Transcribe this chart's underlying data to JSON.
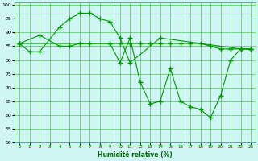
{
  "xlabel": "Humidité relative (%)",
  "background_color": "#cff5f5",
  "grid_color": "#33bb33",
  "line_color": "#009900",
  "marker": "+",
  "marker_size": 4,
  "line_width": 0.8,
  "xlim": [
    -0.5,
    23.5
  ],
  "ylim": [
    50,
    101
  ],
  "yticks": [
    50,
    55,
    60,
    65,
    70,
    75,
    80,
    85,
    90,
    95,
    100
  ],
  "xticks": [
    0,
    1,
    2,
    3,
    4,
    5,
    6,
    7,
    8,
    9,
    10,
    11,
    12,
    13,
    14,
    15,
    16,
    17,
    18,
    19,
    20,
    21,
    22,
    23
  ],
  "series1": {
    "x": [
      0,
      1,
      2,
      4,
      5,
      6,
      7,
      8,
      9,
      10,
      11,
      14,
      22,
      23
    ],
    "y": [
      86,
      83,
      83,
      92,
      95,
      97,
      97,
      95,
      94,
      88,
      79,
      88,
      84,
      84
    ]
  },
  "series2": {
    "x": [
      0,
      2,
      4,
      5,
      6,
      7,
      9,
      10,
      11,
      12,
      13,
      14,
      15,
      16,
      17,
      18,
      19,
      20,
      21,
      22,
      23
    ],
    "y": [
      86,
      89,
      85,
      85,
      86,
      86,
      86,
      86,
      86,
      86,
      86,
      86,
      86,
      86,
      86,
      86,
      85,
      84,
      84,
      84,
      84
    ]
  },
  "series3": {
    "x": [
      0,
      9,
      10,
      11,
      12,
      13,
      14,
      15,
      16,
      17,
      18,
      19,
      20,
      21,
      22,
      23
    ],
    "y": [
      86,
      86,
      79,
      88,
      72,
      64,
      65,
      77,
      65,
      63,
      62,
      59,
      67,
      80,
      84,
      84
    ]
  }
}
